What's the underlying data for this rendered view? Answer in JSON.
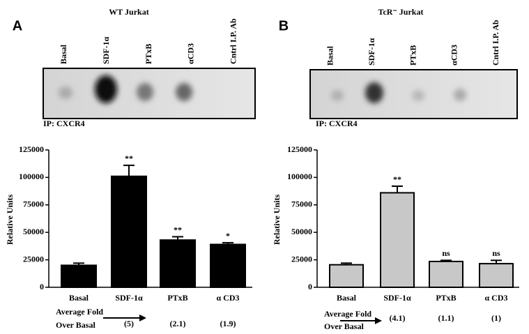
{
  "panels": [
    {
      "label": "A",
      "blot_title": "WT Jurkat",
      "lanes": [
        "Basal",
        "SDF-1α",
        "PTxB",
        "αCD3",
        "Cntrl I.P. Ab"
      ],
      "ip_label": "IP: CXCR4",
      "fold_label": [
        "Average Fold",
        "Over Basal"
      ],
      "folds": [
        "(5)",
        "(2.1)",
        "(1.9)"
      ]
    },
    {
      "label": "B",
      "blot_title": "TcR⁻ Jurkat",
      "lanes": [
        "Basal",
        "SDF-1α",
        "PTxB",
        "αCD3",
        "Cntrl I.P. Ab"
      ],
      "ip_label": "IP: CXCR4",
      "fold_label": [
        "Average Fold",
        "Over Basal"
      ],
      "folds": [
        "(4.1)",
        "(1.1)",
        "(1)"
      ]
    }
  ],
  "chart_data": [
    {
      "type": "bar",
      "ylabel": "Relative Units",
      "categories": [
        "Basal",
        "SDF-1α",
        "PTxB",
        "α CD3"
      ],
      "values": [
        20000,
        101000,
        43000,
        39000
      ],
      "errors": [
        2000,
        10000,
        3000,
        1500
      ],
      "annotations": [
        null,
        "**",
        "**",
        "*"
      ],
      "color": "#000000",
      "ylim": [
        0,
        125000
      ],
      "yticks": [
        0,
        25000,
        50000,
        75000,
        100000,
        125000
      ]
    },
    {
      "type": "bar",
      "ylabel": "Relative Units",
      "categories": [
        "Basal",
        "SDF-1α",
        "PTxB",
        "α CD3"
      ],
      "values": [
        20500,
        86000,
        23500,
        21500
      ],
      "errors": [
        1500,
        6000,
        1000,
        3000
      ],
      "annotations": [
        null,
        "**",
        "ns",
        "ns"
      ],
      "color": "#c8c8c8",
      "ylim": [
        0,
        125000
      ],
      "yticks": [
        0,
        25000,
        50000,
        75000,
        100000,
        125000
      ]
    }
  ]
}
